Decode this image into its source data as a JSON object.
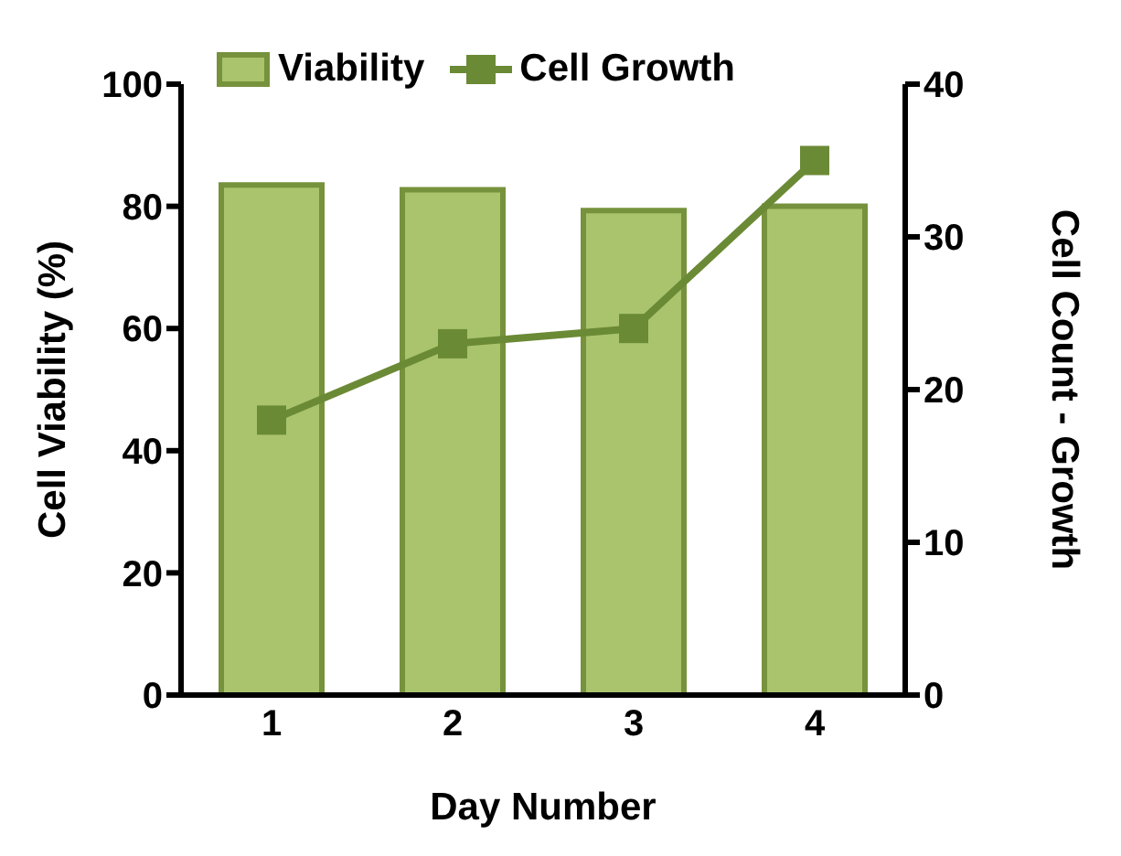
{
  "chart_data": {
    "type": "bar",
    "xlabel": "Day Number",
    "ylabel": "Cell Viability (%)",
    "y2label": "Cell Count - Growth",
    "categories": [
      "1",
      "2",
      "3",
      "4"
    ],
    "series": [
      {
        "name": "Viability",
        "color": "#a9c46c",
        "values": [
          83.5,
          82.7,
          79.3,
          80.0
        ]
      },
      {
        "name": "Cell Growth",
        "type": "line",
        "color": "#6b8a35",
        "axis": "y2",
        "marker": "square",
        "values": [
          18,
          23,
          24,
          35
        ]
      }
    ],
    "ylim": [
      0,
      100
    ],
    "yticks": [
      0,
      20,
      40,
      60,
      80,
      100
    ],
    "y2lim": [
      0,
      40
    ],
    "y2ticks": [
      0,
      10,
      20,
      30,
      40
    ],
    "grid": false,
    "legend": "top left"
  }
}
